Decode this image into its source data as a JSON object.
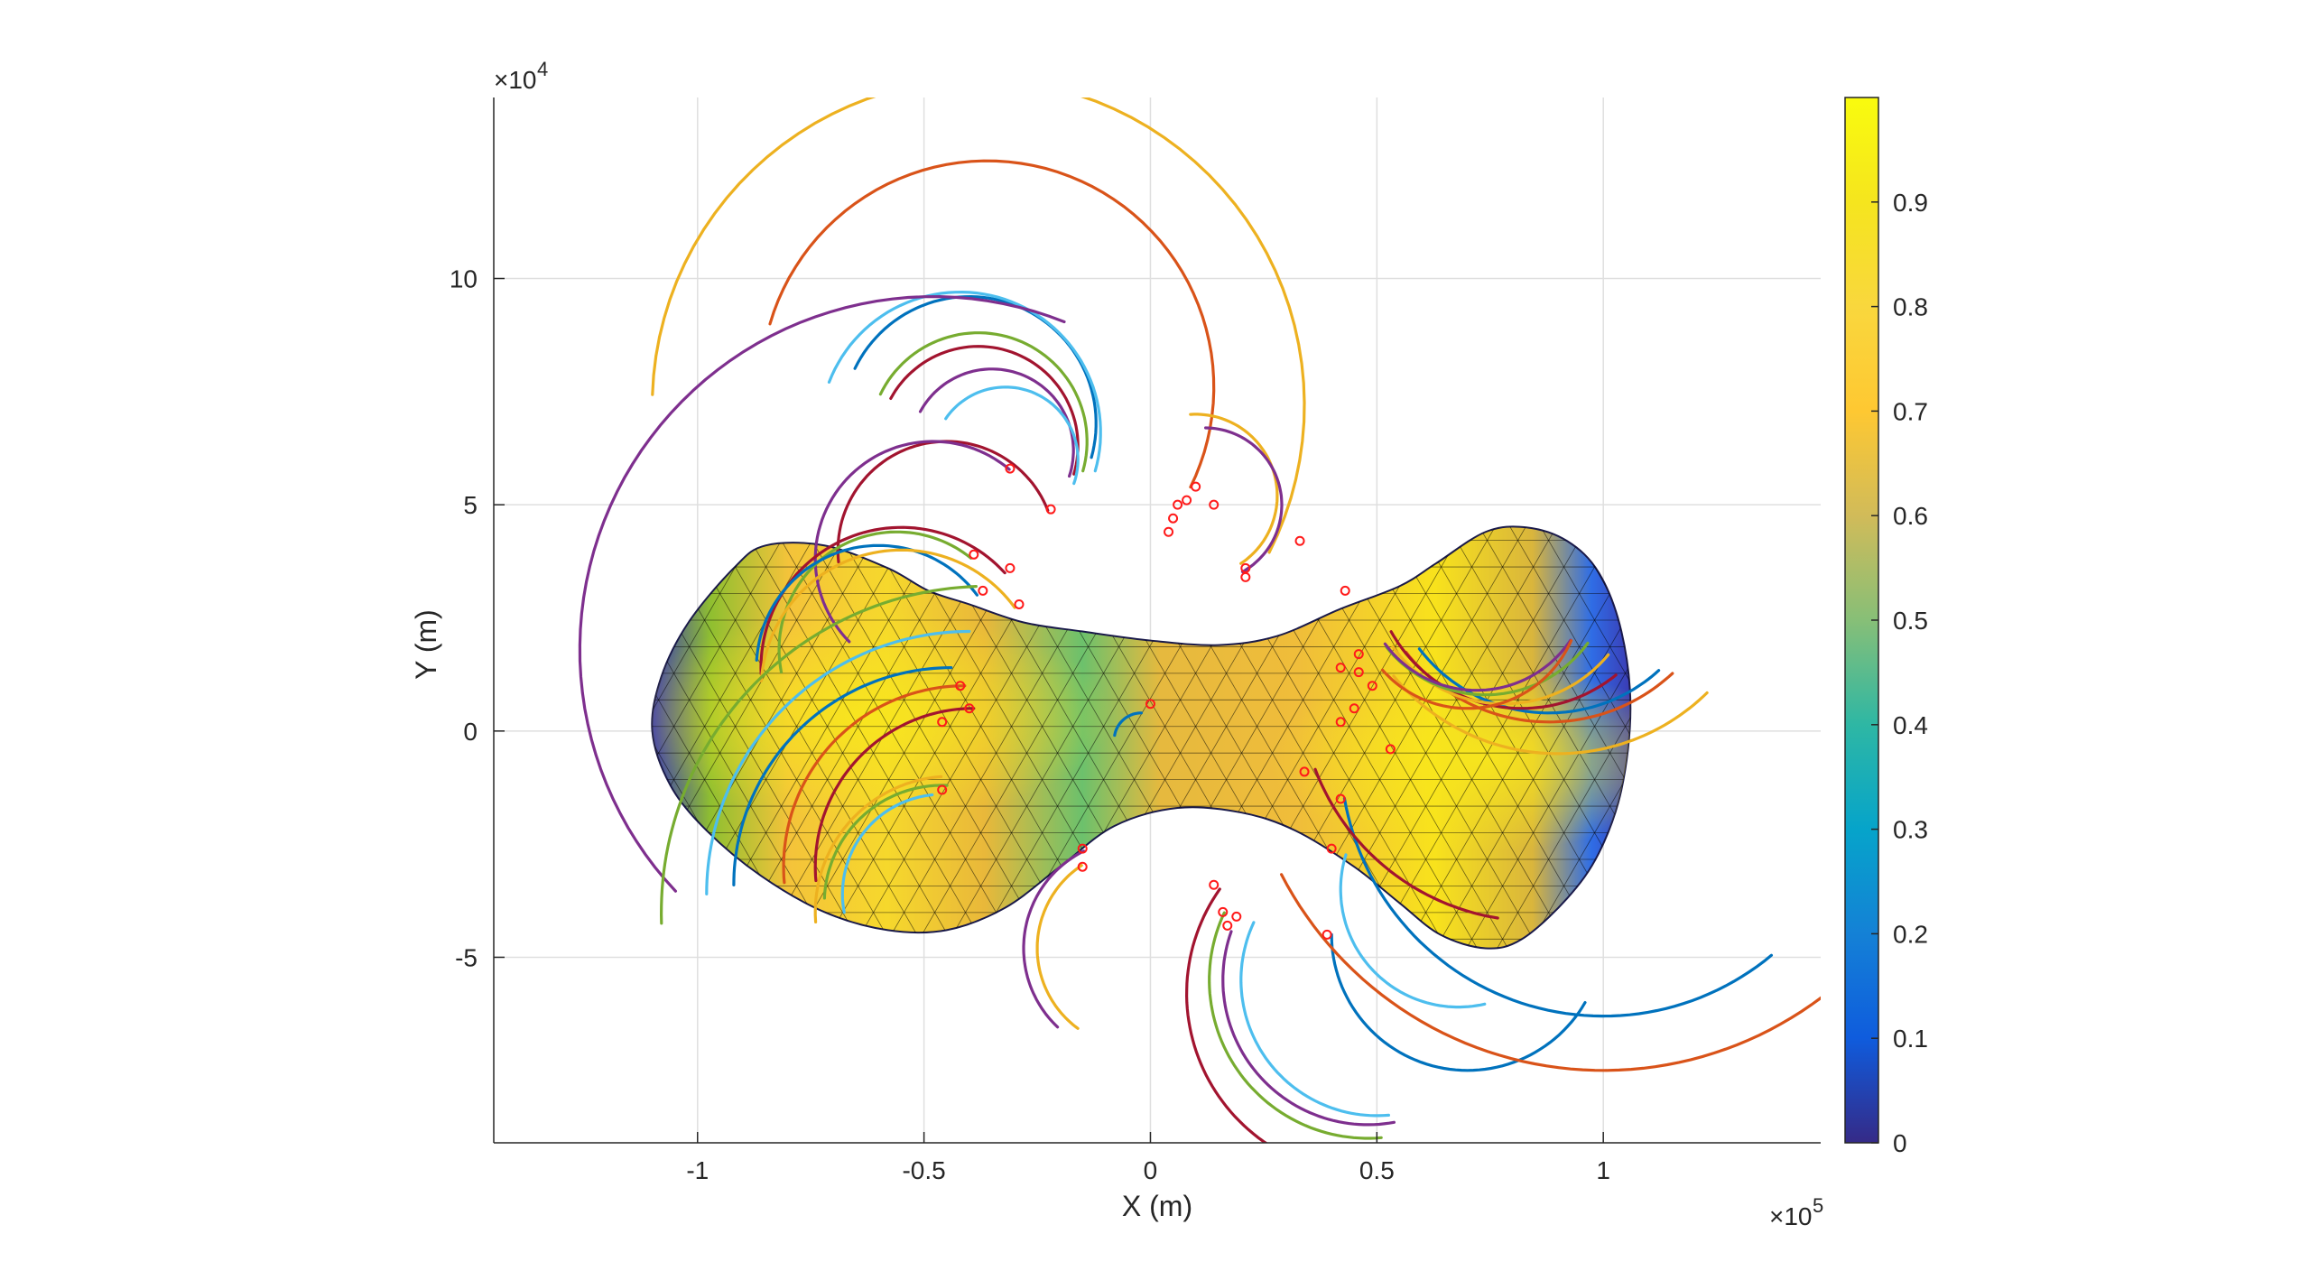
{
  "chart_data": {
    "type": "scatter",
    "title": "",
    "xlabel": "X (m)",
    "ylabel": "Y (m)",
    "x_exponent_label": "×10",
    "x_exponent_power": "5",
    "y_exponent_label": "×10",
    "y_exponent_power": "4",
    "xlim": [
      -145000,
      148000
    ],
    "ylim": [
      -91000,
      140000
    ],
    "x_ticks": [
      -100000,
      -50000,
      0,
      50000,
      100000
    ],
    "x_tick_labels": [
      "-1",
      "-0.5",
      "0",
      "0.5",
      "1"
    ],
    "y_ticks": [
      -50000,
      0,
      50000,
      100000
    ],
    "y_tick_labels": [
      "-5",
      "0",
      "5",
      "10"
    ],
    "grid": true,
    "colorbar": {
      "colormap": "parula",
      "clim": [
        0,
        1
      ],
      "ticks": [
        0,
        0.1,
        0.2,
        0.3,
        0.4,
        0.5,
        0.6,
        0.7,
        0.8,
        0.9
      ],
      "tick_labels": [
        "0",
        "0.1",
        "0.2",
        "0.3",
        "0.4",
        "0.5",
        "0.6",
        "0.7",
        "0.8",
        "0.9"
      ]
    },
    "surface": {
      "description_free": true,
      "outline": [
        [
          -110000,
          0
        ],
        [
          -108000,
          12000
        ],
        [
          -102000,
          24000
        ],
        [
          -92000,
          36000
        ],
        [
          -85000,
          41000
        ],
        [
          -72000,
          41000
        ],
        [
          -58000,
          36000
        ],
        [
          -49000,
          31000
        ],
        [
          -40000,
          28000
        ],
        [
          -28000,
          24000
        ],
        [
          -15000,
          22000
        ],
        [
          0,
          20000
        ],
        [
          15000,
          19000
        ],
        [
          28000,
          21000
        ],
        [
          42000,
          27000
        ],
        [
          55000,
          32000
        ],
        [
          63000,
          37000
        ],
        [
          74000,
          44000
        ],
        [
          83000,
          45000
        ],
        [
          92000,
          42000
        ],
        [
          99000,
          35000
        ],
        [
          104000,
          22000
        ],
        [
          106000,
          5000
        ],
        [
          104000,
          -13000
        ],
        [
          99000,
          -27000
        ],
        [
          92000,
          -37000
        ],
        [
          82000,
          -46000
        ],
        [
          74000,
          -48000
        ],
        [
          64000,
          -45000
        ],
        [
          55000,
          -38000
        ],
        [
          45000,
          -30000
        ],
        [
          32000,
          -22000
        ],
        [
          20000,
          -18000
        ],
        [
          6000,
          -17000
        ],
        [
          -8000,
          -21000
        ],
        [
          -20000,
          -30000
        ],
        [
          -32000,
          -39000
        ],
        [
          -45000,
          -44000
        ],
        [
          -58000,
          -44000
        ],
        [
          -72000,
          -40000
        ],
        [
          -86000,
          -32000
        ],
        [
          -98000,
          -22000
        ],
        [
          -106000,
          -12000
        ]
      ],
      "color_stops": [
        {
          "offset": 0.0,
          "color": "#3b3bb4"
        },
        {
          "offset": 0.12,
          "color": "#2f6de6"
        },
        {
          "offset": 0.28,
          "color": "#1aa7d8"
        },
        {
          "offset": 0.46,
          "color": "#3fbf86"
        },
        {
          "offset": 0.62,
          "color": "#b7bd2f"
        },
        {
          "offset": 0.8,
          "color": "#f2b93a"
        },
        {
          "offset": 1.0,
          "color": "#f8e71c"
        }
      ]
    },
    "trajectory_colors": [
      "#0072bd",
      "#d95319",
      "#edb120",
      "#7e2f8e",
      "#77ac30",
      "#4dbeee",
      "#a2142f"
    ],
    "trajectories": [
      {
        "color_index": 2,
        "start": [
          43000,
          31000
        ],
        "center": [
          -38000,
          72000
        ],
        "radius": 72000,
        "sweep": 205
      },
      {
        "color_index": 1,
        "start": [
          33000,
          42000
        ],
        "center": [
          -36000,
          76000
        ],
        "radius": 50000,
        "sweep": 190
      },
      {
        "color_index": 0,
        "start": [
          10000,
          54000
        ],
        "center": [
          -40000,
          68000
        ],
        "radius": 28000,
        "sweep": 170
      },
      {
        "color_index": 5,
        "start": [
          14000,
          50000
        ],
        "center": [
          -42000,
          66000
        ],
        "radius": 31000,
        "sweep": 175
      },
      {
        "color_index": 4,
        "start": [
          8000,
          51000
        ],
        "center": [
          -38000,
          64000
        ],
        "radius": 24000,
        "sweep": 170
      },
      {
        "color_index": 6,
        "start": [
          6000,
          50000
        ],
        "center": [
          -38000,
          63000
        ],
        "radius": 22000,
        "sweep": 168
      },
      {
        "color_index": 3,
        "start": [
          4000,
          49000
        ],
        "center": [
          -35000,
          62000
        ],
        "radius": 18000,
        "sweep": 170
      },
      {
        "color_index": 5,
        "start": [
          5000,
          47000
        ],
        "center": [
          -32000,
          60000
        ],
        "radius": 16000,
        "sweep": 165
      },
      {
        "color_index": 2,
        "start": [
          20000,
          37000
        ],
        "center": [
          10000,
          52000
        ],
        "radius": 18000,
        "sweep": 150
      },
      {
        "color_index": 3,
        "start": [
          21000,
          34000
        ],
        "center": [
          12000,
          50000
        ],
        "radius": 17000,
        "sweep": 150
      },
      {
        "color_index": 6,
        "start": [
          -22000,
          49000
        ],
        "center": [
          -45000,
          40000
        ],
        "radius": 24000,
        "sweep": 165
      },
      {
        "color_index": 3,
        "start": [
          -31000,
          58000
        ],
        "center": [
          -48000,
          38000
        ],
        "radius": 26000,
        "sweep": 175
      },
      {
        "color_index": 4,
        "start": [
          -39000,
          39000
        ],
        "center": [
          -56000,
          18000
        ],
        "radius": 26000,
        "sweep": 140
      },
      {
        "color_index": 6,
        "start": [
          -31000,
          36000
        ],
        "center": [
          -55000,
          14000
        ],
        "radius": 31000,
        "sweep": 140
      },
      {
        "color_index": 0,
        "start": [
          -37000,
          31000
        ],
        "center": [
          -60000,
          14000
        ],
        "radius": 27000,
        "sweep": 140
      },
      {
        "color_index": 2,
        "start": [
          -29000,
          28000
        ],
        "center": [
          -55000,
          9000
        ],
        "radius": 31000,
        "sweep": 140
      },
      {
        "color_index": 3,
        "start": [
          -32000,
          58000
        ],
        "center": [
          -48000,
          18000
        ],
        "radius": 78000,
        "sweep": 155
      },
      {
        "color_index": 4,
        "start": [
          -38000,
          18000
        ],
        "center": [
          -36000,
          -40000
        ],
        "radius": 72000,
        "sweep": 90
      },
      {
        "color_index": 5,
        "start": [
          -40000,
          15000
        ],
        "center": [
          -40000,
          -36000
        ],
        "radius": 58000,
        "sweep": 90
      },
      {
        "color_index": 0,
        "start": [
          -44000,
          10000
        ],
        "center": [
          -44000,
          -34000
        ],
        "radius": 48000,
        "sweep": 90
      },
      {
        "color_index": 1,
        "start": [
          -41000,
          5000
        ],
        "center": [
          -41000,
          -30000
        ],
        "radius": 40000,
        "sweep": 95
      },
      {
        "color_index": 6,
        "start": [
          -39000,
          2000
        ],
        "center": [
          -39000,
          -30000
        ],
        "radius": 35000,
        "sweep": 95
      },
      {
        "color_index": 2,
        "start": [
          -46000,
          -13000
        ],
        "center": [
          -44000,
          -40000
        ],
        "radius": 30000,
        "sweep": 90
      },
      {
        "color_index": 4,
        "start": [
          -45000,
          -14000
        ],
        "center": [
          -46000,
          -38000
        ],
        "radius": 26000,
        "sweep": 90
      },
      {
        "color_index": 5,
        "start": [
          -48000,
          -16000
        ],
        "center": [
          -46000,
          -36000
        ],
        "radius": 22000,
        "sweep": 95
      },
      {
        "color_index": 3,
        "start": [
          -15000,
          -26000
        ],
        "center": [
          -4000,
          -48000
        ],
        "radius": 24000,
        "sweep": 110
      },
      {
        "color_index": 2,
        "start": [
          -15000,
          -30000
        ],
        "center": [
          -3000,
          -48000
        ],
        "radius": 22000,
        "sweep": 110
      },
      {
        "color_index": 0,
        "start": [
          40000,
          -45000
        ],
        "center": [
          70000,
          -45000
        ],
        "radius": 30000,
        "sweep": 150
      },
      {
        "color_index": 6,
        "start": [
          14000,
          -34000
        ],
        "center": [
          48000,
          -58000
        ],
        "radius": 40000,
        "sweep": 120
      },
      {
        "color_index": 4,
        "start": [
          16000,
          -40000
        ],
        "center": [
          48000,
          -55000
        ],
        "radius": 35000,
        "sweep": 120
      },
      {
        "color_index": 3,
        "start": [
          17000,
          -44000
        ],
        "center": [
          48000,
          -55000
        ],
        "radius": 32000,
        "sweep": 120
      },
      {
        "color_index": 5,
        "start": [
          20000,
          -41000
        ],
        "center": [
          50000,
          -55000
        ],
        "radius": 30000,
        "sweep": 120
      },
      {
        "color_index": 1,
        "start": [
          40000,
          -26000
        ],
        "center": [
          100000,
          5000
        ],
        "radius": 80000,
        "sweep": 115
      },
      {
        "color_index": 0,
        "start": [
          42000,
          -15000
        ],
        "center": [
          100000,
          -5000
        ],
        "radius": 58000,
        "sweep": 120
      },
      {
        "color_index": 2,
        "start": [
          45000,
          5000
        ],
        "center": [
          90000,
          42000
        ],
        "radius": 47000,
        "sweep": 95
      },
      {
        "color_index": 1,
        "start": [
          47000,
          10000
        ],
        "center": [
          88000,
          42000
        ],
        "radius": 40000,
        "sweep": 95
      },
      {
        "color_index": 0,
        "start": [
          50000,
          11000
        ],
        "center": [
          88000,
          40000
        ],
        "radius": 36000,
        "sweep": 95
      },
      {
        "color_index": 6,
        "start": [
          46000,
          18000
        ],
        "center": [
          82000,
          38000
        ],
        "radius": 33000,
        "sweep": 100
      },
      {
        "color_index": 2,
        "start": [
          47000,
          14000
        ],
        "center": [
          78000,
          36000
        ],
        "radius": 30000,
        "sweep": 105
      },
      {
        "color_index": 4,
        "start": [
          44000,
          12000
        ],
        "center": [
          74000,
          36000
        ],
        "radius": 28000,
        "sweep": 105
      },
      {
        "color_index": 3,
        "start": [
          46000,
          15000
        ],
        "center": [
          72000,
          34000
        ],
        "radius": 25000,
        "sweep": 110
      },
      {
        "color_index": 1,
        "start": [
          45000,
          8000
        ],
        "center": [
          70000,
          30000
        ],
        "radius": 25000,
        "sweep": 115
      },
      {
        "color_index": 6,
        "start": [
          35000,
          -9000
        ],
        "center": [
          85000,
          10000
        ],
        "radius": 52000,
        "sweep": 60
      },
      {
        "color_index": 5,
        "start": [
          42000,
          -27000
        ],
        "center": [
          68000,
          -35000
        ],
        "radius": 26000,
        "sweep": 120
      },
      {
        "color_index": 0,
        "start": [
          -2000,
          6000
        ],
        "center": [
          -2000,
          -2000
        ],
        "radius": 6000,
        "sweep": 80
      }
    ],
    "markers": [
      [
        43000,
        31000
      ],
      [
        33000,
        42000
      ],
      [
        14000,
        50000
      ],
      [
        10000,
        54000
      ],
      [
        8000,
        51000
      ],
      [
        6000,
        50000
      ],
      [
        5000,
        47000
      ],
      [
        4000,
        44000
      ],
      [
        21000,
        34000
      ],
      [
        21000,
        36000
      ],
      [
        -22000,
        49000
      ],
      [
        -31000,
        58000
      ],
      [
        -39000,
        39000
      ],
      [
        -31000,
        36000
      ],
      [
        -37000,
        31000
      ],
      [
        -29000,
        28000
      ],
      [
        0,
        6000
      ],
      [
        -15000,
        -26000
      ],
      [
        -15000,
        -30000
      ],
      [
        14000,
        -34000
      ],
      [
        16000,
        -40000
      ],
      [
        17000,
        -43000
      ],
      [
        19000,
        -41000
      ],
      [
        39000,
        -45000
      ],
      [
        42000,
        2000
      ],
      [
        45000,
        5000
      ],
      [
        49000,
        10000
      ],
      [
        46000,
        17000
      ],
      [
        46000,
        13000
      ],
      [
        42000,
        14000
      ],
      [
        34000,
        -9000
      ],
      [
        42000,
        -15000
      ],
      [
        40000,
        -26000
      ],
      [
        53000,
        -4000
      ],
      [
        -46000,
        2000
      ],
      [
        -40000,
        5000
      ],
      [
        -42000,
        10000
      ],
      [
        -46000,
        -13000
      ]
    ]
  }
}
